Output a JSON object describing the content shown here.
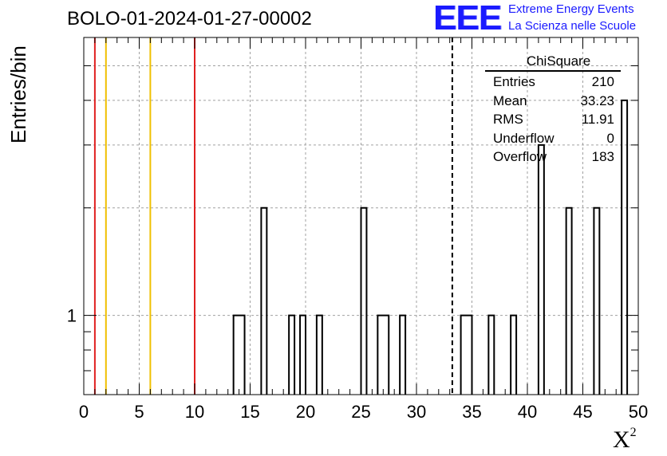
{
  "title": "BOLO-01-2024-01-27-00002",
  "logo": {
    "mark": "EEE",
    "line1": "Extreme Energy Events",
    "line2": "La Scienza nelle Scuole"
  },
  "stats_box": {
    "title": "ChiSquare",
    "rows": [
      {
        "label": "Entries",
        "value": "210"
      },
      {
        "label": "Mean",
        "value": "33.23"
      },
      {
        "label": "RMS",
        "value": "11.91"
      },
      {
        "label": "Underflow",
        "value": "0"
      },
      {
        "label": "Overflow",
        "value": "183"
      }
    ]
  },
  "chart_data": {
    "type": "bar",
    "histogram": "step",
    "title": "BOLO-01-2024-01-27-00002",
    "xlabel": "X",
    "xlabel_sup": "2",
    "ylabel": "Entries/bin",
    "xlim": [
      0,
      50
    ],
    "ylim": [
      0.6,
      6
    ],
    "ylog": true,
    "grid": true,
    "bin_width": 1,
    "x_ticks": [
      0,
      5,
      10,
      15,
      20,
      25,
      30,
      35,
      40,
      45,
      50
    ],
    "y_tick_labels": [
      {
        "value": 1,
        "label": "1"
      }
    ],
    "bins": [
      {
        "x0": 13.5,
        "x1": 14.5,
        "count": 1
      },
      {
        "x0": 16.0,
        "x1": 16.5,
        "count": 2
      },
      {
        "x0": 18.5,
        "x1": 19.0,
        "count": 1
      },
      {
        "x0": 19.5,
        "x1": 20.0,
        "count": 1
      },
      {
        "x0": 21.0,
        "x1": 21.5,
        "count": 1
      },
      {
        "x0": 25.0,
        "x1": 25.5,
        "count": 2
      },
      {
        "x0": 26.5,
        "x1": 27.5,
        "count": 1
      },
      {
        "x0": 28.5,
        "x1": 29.0,
        "count": 1
      },
      {
        "x0": 34.0,
        "x1": 35.0,
        "count": 1
      },
      {
        "x0": 36.5,
        "x1": 37.0,
        "count": 1
      },
      {
        "x0": 38.5,
        "x1": 39.0,
        "count": 1
      },
      {
        "x0": 41.0,
        "x1": 41.5,
        "count": 3
      },
      {
        "x0": 43.5,
        "x1": 44.0,
        "count": 2
      },
      {
        "x0": 46.0,
        "x1": 46.5,
        "count": 2
      },
      {
        "x0": 48.5,
        "x1": 49.0,
        "count": 4
      }
    ],
    "reference_lines": [
      {
        "x": 1,
        "color": "#e02020",
        "style": "solid"
      },
      {
        "x": 2,
        "color": "#f0c000",
        "style": "solid"
      },
      {
        "x": 6,
        "color": "#f0c000",
        "style": "solid"
      },
      {
        "x": 10,
        "color": "#e02020",
        "style": "solid"
      },
      {
        "x": 33.23,
        "color": "#000000",
        "style": "dashed"
      }
    ],
    "colors": {
      "histogram": "#000000",
      "grid": "#a0a0a0"
    }
  }
}
